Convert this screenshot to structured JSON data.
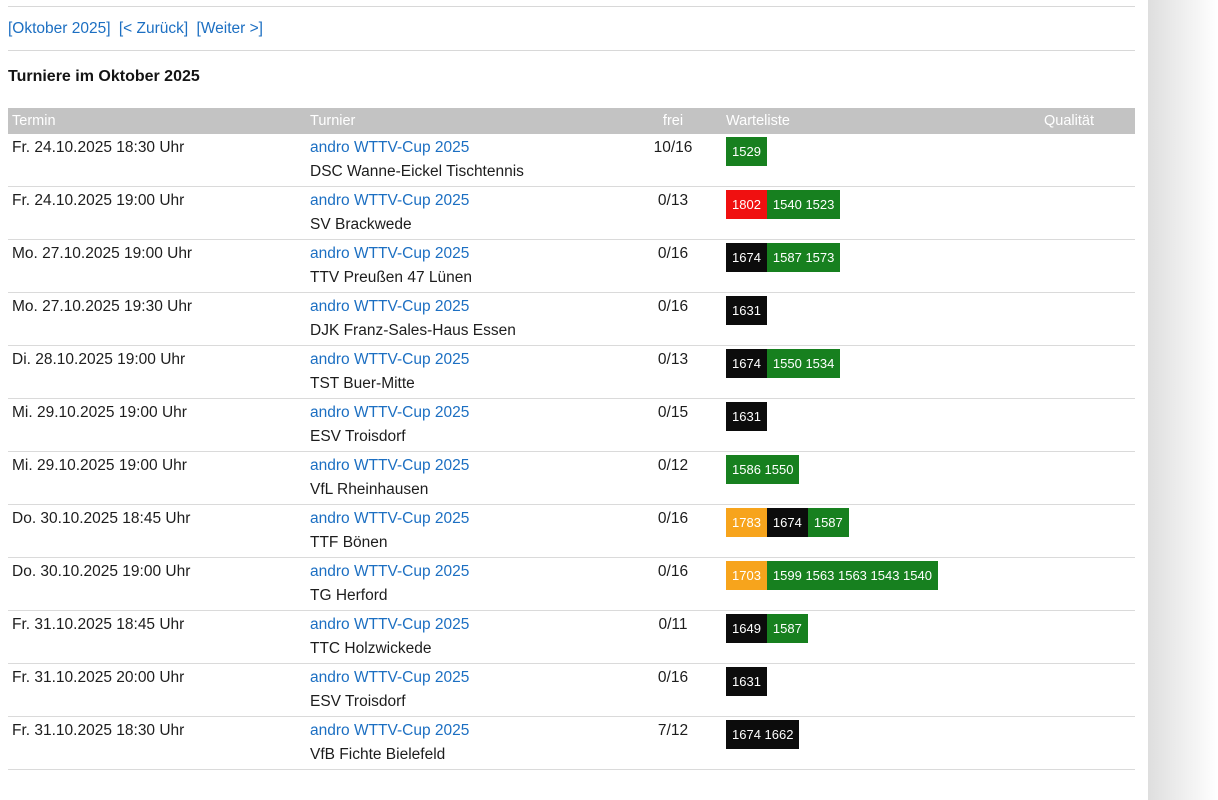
{
  "nav": {
    "month_label": "[Oktober 2025]",
    "back_label": "[< Zurück]",
    "next_label": "[Weiter >]"
  },
  "page": {
    "title": "Turniere im Oktober 2025"
  },
  "table": {
    "headers": {
      "termin": "Termin",
      "turnier": "Turnier",
      "frei": "frei",
      "warteliste": "Warteliste",
      "qualitaet": "Qualität"
    },
    "rows": [
      {
        "termin": "Fr. 24.10.2025 18:30 Uhr",
        "turnier_link": "andro WTTV-Cup 2025",
        "club": "DSC Wanne-Eickel Tischtennis",
        "frei": "10/16",
        "warteliste": [
          {
            "color": "green",
            "values": [
              "1529"
            ]
          }
        ],
        "qualitaet": ""
      },
      {
        "termin": "Fr. 24.10.2025 19:00 Uhr",
        "turnier_link": "andro WTTV-Cup 2025",
        "club": "SV Brackwede",
        "frei": "0/13",
        "warteliste": [
          {
            "color": "red",
            "values": [
              "1802"
            ]
          },
          {
            "color": "green",
            "values": [
              "1540",
              "1523"
            ]
          }
        ],
        "qualitaet": ""
      },
      {
        "termin": "Mo. 27.10.2025 19:00 Uhr",
        "turnier_link": "andro WTTV-Cup 2025",
        "club": "TTV Preußen 47 Lünen",
        "frei": "0/16",
        "warteliste": [
          {
            "color": "black",
            "values": [
              "1674"
            ]
          },
          {
            "color": "green",
            "values": [
              "1587",
              "1573"
            ]
          }
        ],
        "qualitaet": ""
      },
      {
        "termin": "Mo. 27.10.2025 19:30 Uhr",
        "turnier_link": "andro WTTV-Cup 2025",
        "club": "DJK Franz-Sales-Haus Essen",
        "frei": "0/16",
        "warteliste": [
          {
            "color": "black",
            "values": [
              "1631"
            ]
          }
        ],
        "qualitaet": ""
      },
      {
        "termin": "Di. 28.10.2025 19:00 Uhr",
        "turnier_link": "andro WTTV-Cup 2025",
        "club": "TST Buer-Mitte",
        "frei": "0/13",
        "warteliste": [
          {
            "color": "black",
            "values": [
              "1674"
            ]
          },
          {
            "color": "green",
            "values": [
              "1550",
              "1534"
            ]
          }
        ],
        "qualitaet": ""
      },
      {
        "termin": "Mi. 29.10.2025 19:00 Uhr",
        "turnier_link": "andro WTTV-Cup 2025",
        "club": "ESV Troisdorf",
        "frei": "0/15",
        "warteliste": [
          {
            "color": "black",
            "values": [
              "1631"
            ]
          }
        ],
        "qualitaet": ""
      },
      {
        "termin": "Mi. 29.10.2025 19:00 Uhr",
        "turnier_link": "andro WTTV-Cup 2025",
        "club": "VfL Rheinhausen",
        "frei": "0/12",
        "warteliste": [
          {
            "color": "green",
            "values": [
              "1586",
              "1550"
            ]
          }
        ],
        "qualitaet": ""
      },
      {
        "termin": "Do. 30.10.2025 18:45 Uhr",
        "turnier_link": "andro WTTV-Cup 2025",
        "club": "TTF Bönen",
        "frei": "0/16",
        "warteliste": [
          {
            "color": "orange",
            "values": [
              "1783"
            ]
          },
          {
            "color": "black",
            "values": [
              "1674"
            ]
          },
          {
            "color": "green",
            "values": [
              "1587"
            ]
          }
        ],
        "qualitaet": ""
      },
      {
        "termin": "Do. 30.10.2025 19:00 Uhr",
        "turnier_link": "andro WTTV-Cup 2025",
        "club": "TG Herford",
        "frei": "0/16",
        "warteliste": [
          {
            "color": "orange",
            "values": [
              "1703"
            ]
          },
          {
            "color": "green",
            "values": [
              "1599",
              "1563",
              "1563",
              "1543",
              "1540"
            ]
          }
        ],
        "qualitaet": ""
      },
      {
        "termin": "Fr. 31.10.2025 18:45 Uhr",
        "turnier_link": "andro WTTV-Cup 2025",
        "club": "TTC Holzwickede",
        "frei": "0/11",
        "warteliste": [
          {
            "color": "black",
            "values": [
              "1649"
            ]
          },
          {
            "color": "green",
            "values": [
              "1587"
            ]
          }
        ],
        "qualitaet": ""
      },
      {
        "termin": "Fr. 31.10.2025 20:00 Uhr",
        "turnier_link": "andro WTTV-Cup 2025",
        "club": "ESV Troisdorf",
        "frei": "0/16",
        "warteliste": [
          {
            "color": "black",
            "values": [
              "1631"
            ]
          }
        ],
        "qualitaet": ""
      },
      {
        "termin": "Fr. 31.10.2025 18:30 Uhr",
        "turnier_link": "andro WTTV-Cup 2025",
        "club": "VfB Fichte Bielefeld",
        "frei": "7/12",
        "warteliste": [
          {
            "color": "black",
            "values": [
              "1674",
              "1662"
            ]
          }
        ],
        "qualitaet": ""
      }
    ]
  },
  "colors": {
    "green": "#17801f",
    "red": "#f01010",
    "orange": "#f7a41c",
    "black": "#0c0c0c",
    "link_blue": "#1c6fc2",
    "header_bg": "#c3c3c3",
    "separator": "#dadada"
  }
}
